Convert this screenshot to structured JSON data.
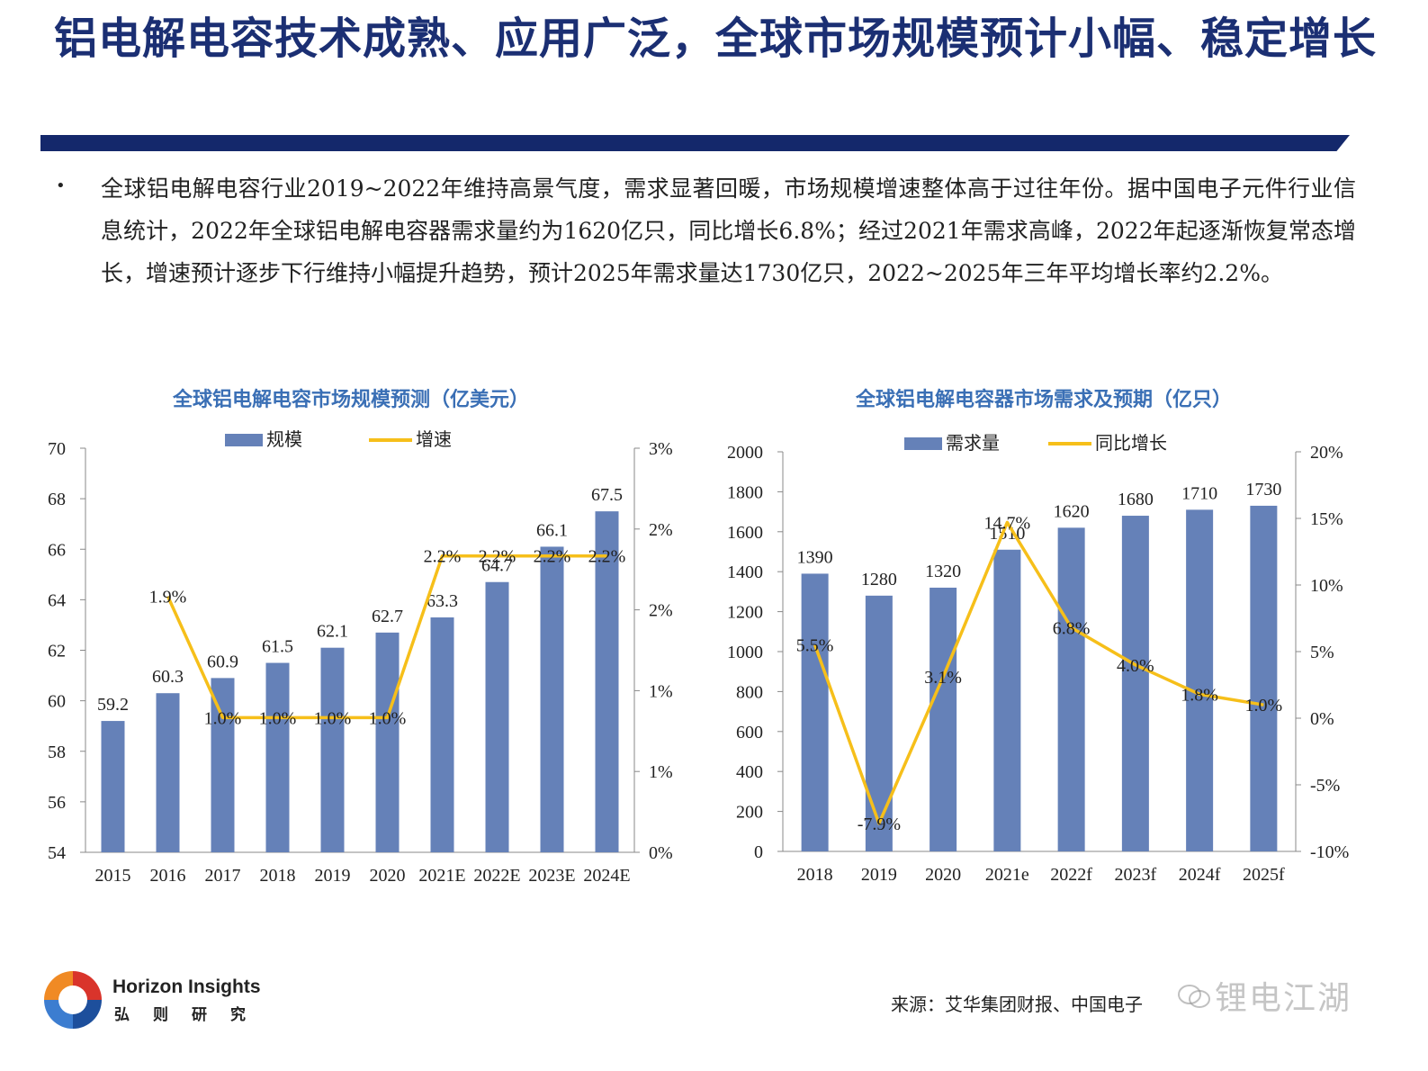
{
  "page": {
    "title": "铝电解电容技术成熟、应用广泛，全球市场规模预计小幅、稳定增长",
    "bullet": "•",
    "body": "全球铝电解电容行业2019~2022年维持高景气度，需求显著回暖，市场规模增速整体高于过往年份。据中国电子元件行业信息统计，2022年全球铝电解电容器需求量约为1620亿只，同比增长6.8%；经过2021年需求高峰，2022年起逐渐恢复常态增长，增速预计逐步下行维持小幅提升趋势，预计2025年需求量达1730亿只，2022~2025年三年平均增长率约2.2%。"
  },
  "colors": {
    "bar": "#6581b8",
    "line": "#f6bf1a",
    "title": "#1b2f73",
    "chart_title": "#3a6fb5"
  },
  "chart_data": [
    {
      "type": "bar",
      "title": "全球铝电解电容市场规模预测（亿美元）",
      "categories": [
        "2015",
        "2016",
        "2017",
        "2018",
        "2019",
        "2020",
        "2021E",
        "2022E",
        "2023E",
        "2024E"
      ],
      "series": [
        {
          "name": "规模",
          "type": "bar",
          "axis": "left",
          "values": [
            59.2,
            60.3,
            60.9,
            61.5,
            62.1,
            62.7,
            63.3,
            64.7,
            66.1,
            67.5
          ],
          "labels": [
            "59.2",
            "60.3",
            "60.9",
            "61.5",
            "62.1",
            "62.7",
            "63.3",
            "64.7",
            "66.1",
            "67.5"
          ]
        },
        {
          "name": "增速",
          "type": "line",
          "axis": "right",
          "values": [
            null,
            1.9,
            1.0,
            1.0,
            1.0,
            1.0,
            2.2,
            2.2,
            2.2,
            2.2
          ],
          "labels": [
            null,
            "1.9%",
            "1.0%",
            "1.0%",
            "1.0%",
            "1.0%",
            "2.2%",
            "2.2%",
            "2.2%",
            "2.2%"
          ]
        }
      ],
      "ylim": [
        54,
        70
      ],
      "yticks": [
        "54",
        "56",
        "58",
        "60",
        "62",
        "64",
        "66",
        "68",
        "70"
      ],
      "y2lim": [
        0,
        3
      ],
      "y2ticks": [
        "0%",
        "1%",
        "1%",
        "2%",
        "2%",
        "3%"
      ],
      "legend": "top"
    },
    {
      "type": "bar",
      "title": "全球铝电解电容器市场需求及预期（亿只）",
      "categories": [
        "2018",
        "2019",
        "2020",
        "2021e",
        "2022f",
        "2023f",
        "2024f",
        "2025f"
      ],
      "series": [
        {
          "name": "需求量",
          "type": "bar",
          "axis": "left",
          "values": [
            1390,
            1280,
            1320,
            1510,
            1620,
            1680,
            1710,
            1730
          ],
          "labels": [
            "1390",
            "1280",
            "1320",
            "1510",
            "1620",
            "1680",
            "1710",
            "1730"
          ]
        },
        {
          "name": "同比增长",
          "type": "line",
          "axis": "right",
          "values": [
            5.5,
            -7.9,
            3.1,
            14.7,
            6.8,
            4.0,
            1.8,
            1.0
          ],
          "labels": [
            "5.5%",
            "-7.9%",
            "3.1%",
            "14.7%",
            "6.8%",
            "4.0%",
            "1.8%",
            "1.0%"
          ]
        }
      ],
      "ylim": [
        0,
        2000
      ],
      "yticks": [
        "0",
        "200",
        "400",
        "600",
        "800",
        "1000",
        "1200",
        "1400",
        "1600",
        "1800",
        "2000"
      ],
      "y2lim": [
        -10,
        20
      ],
      "y2ticks": [
        "-10%",
        "-5%",
        "0%",
        "5%",
        "10%",
        "15%",
        "20%"
      ],
      "legend": "top"
    }
  ],
  "footer": {
    "brand_en": "Horizon Insights",
    "brand_cn": "弘则研究",
    "source": "来源：艾华集团财报、中国电子",
    "watermark": "锂电江湖"
  }
}
